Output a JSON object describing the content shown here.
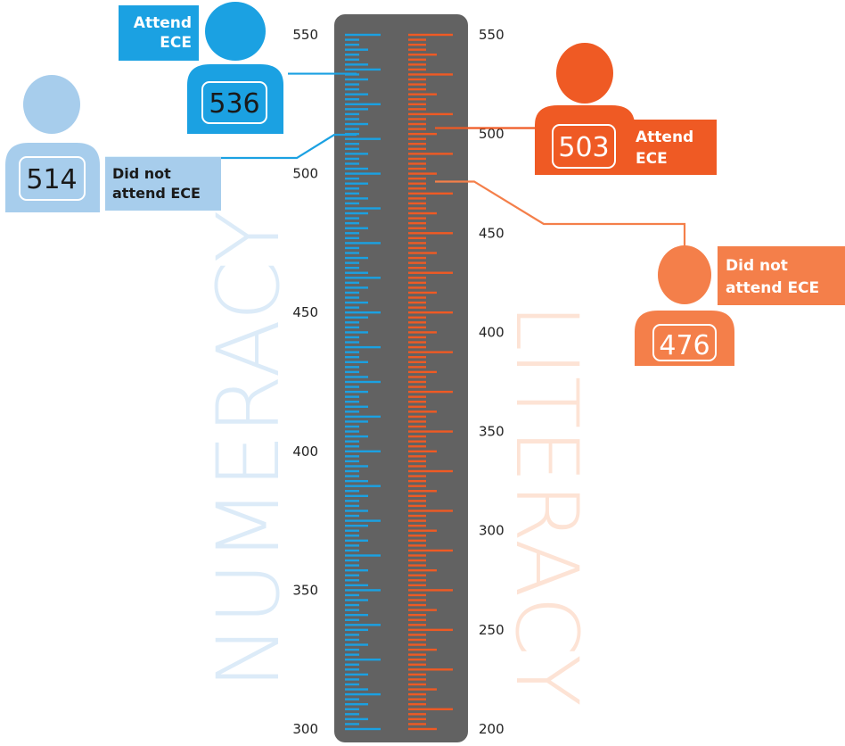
{
  "chart_data": [
    {
      "type": "scatter",
      "name": "NUMERACY",
      "ylim": [
        300,
        550
      ],
      "y_ticks": [
        300,
        350,
        400,
        450,
        500,
        550
      ],
      "points": [
        {
          "label": "Attend ECE",
          "value": 536,
          "value_text": "536"
        },
        {
          "label": "Did not attend ECE",
          "value": 514,
          "value_text": "514"
        }
      ]
    },
    {
      "type": "scatter",
      "name": "LITERACY",
      "ylim": [
        200,
        550
      ],
      "y_ticks": [
        200,
        250,
        300,
        350,
        400,
        450,
        500,
        550
      ],
      "points": [
        {
          "label": "Attend ECE",
          "value": 503,
          "value_text": "503"
        },
        {
          "label": "Did not attend ECE",
          "value": 476,
          "value_text": "476"
        }
      ]
    }
  ],
  "labels": {
    "numeracy_attend_line1": "Attend",
    "numeracy_attend_line2": "ECE",
    "numeracy_not_line1": "Did not",
    "numeracy_not_line2": "attend ECE",
    "literacy_attend_line1": "Attend",
    "literacy_attend_line2": "ECE",
    "literacy_not_line1": "Did not",
    "literacy_not_line2": "attend ECE"
  },
  "colors": {
    "numeracy": "#1ba1e2",
    "numeracy_light": "#a7cdec",
    "numeracy_word": "#dcebf8",
    "literacy": "#ef5a24",
    "literacy_light": "#f47f4a",
    "literacy_word": "#fde3d5",
    "thermometer": "#626262"
  }
}
